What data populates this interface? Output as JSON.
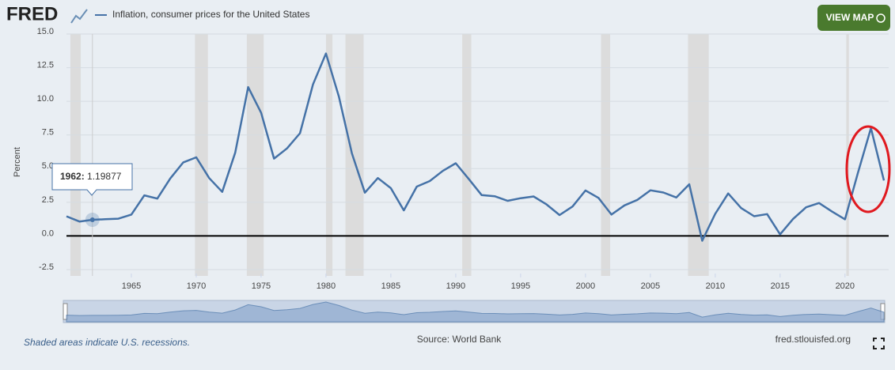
{
  "header": {
    "logo": "FRED",
    "button": "VIEW MAP"
  },
  "chart_data": {
    "type": "line",
    "y_label": "Percent",
    "x": [
      1960,
      1961,
      1962,
      1963,
      1964,
      1965,
      1966,
      1967,
      1968,
      1969,
      1970,
      1971,
      1972,
      1973,
      1974,
      1975,
      1976,
      1977,
      1978,
      1979,
      1980,
      1981,
      1982,
      1983,
      1984,
      1985,
      1986,
      1987,
      1988,
      1989,
      1990,
      1991,
      1992,
      1993,
      1994,
      1995,
      1996,
      1997,
      1998,
      1999,
      2000,
      2001,
      2002,
      2003,
      2004,
      2005,
      2006,
      2007,
      2008,
      2009,
      2010,
      2011,
      2012,
      2013,
      2014,
      2015,
      2016,
      2017,
      2018,
      2019,
      2020,
      2021,
      2022,
      2023
    ],
    "series": [
      {
        "name": "Inflation, consumer prices for the United States",
        "color": "#4572a7",
        "values": [
          1.458,
          1.071,
          1.19877,
          1.24,
          1.279,
          1.585,
          3.015,
          2.773,
          4.272,
          5.462,
          5.838,
          4.293,
          3.272,
          6.178,
          11.055,
          9.143,
          5.745,
          6.502,
          7.631,
          11.254,
          13.549,
          10.335,
          6.131,
          3.213,
          4.3,
          3.546,
          1.898,
          3.664,
          4.078,
          4.827,
          5.398,
          4.235,
          3.029,
          2.952,
          2.607,
          2.805,
          2.931,
          2.338,
          1.552,
          2.188,
          3.377,
          2.826,
          1.586,
          2.27,
          2.677,
          3.393,
          3.226,
          2.853,
          3.839,
          -0.356,
          1.64,
          3.157,
          2.069,
          1.465,
          1.622,
          0.119,
          1.262,
          2.13,
          2.443,
          1.812,
          1.234,
          4.698,
          8.003,
          4.116
        ]
      }
    ],
    "xlim": [
      1960,
      2023
    ],
    "ylim": [
      -2.5,
      15
    ],
    "xticks": [
      1965,
      1970,
      1975,
      1980,
      1985,
      1990,
      1995,
      2000,
      2005,
      2010,
      2015,
      2020
    ],
    "yticks": [
      {
        "value": 15,
        "label": "15.0"
      },
      {
        "value": 12.5,
        "label": "12.5"
      },
      {
        "value": 10,
        "label": "10.0"
      },
      {
        "value": 7.5,
        "label": "7.5"
      },
      {
        "value": 5,
        "label": "5.0"
      },
      {
        "value": 2.5,
        "label": "2.5"
      },
      {
        "value": 0,
        "label": "0.0"
      },
      {
        "value": -2.5,
        "label": "-2.5"
      }
    ],
    "grid": true,
    "recessions": [
      [
        1960.3,
        1961.1
      ],
      [
        1969.9,
        1970.9
      ],
      [
        1973.9,
        1975.2
      ],
      [
        1980.0,
        1980.5
      ],
      [
        1981.5,
        1982.9
      ],
      [
        1990.5,
        1991.2
      ],
      [
        2001.2,
        2001.9
      ],
      [
        2007.9,
        2009.5
      ],
      [
        2020.1,
        2020.3
      ]
    ],
    "recession_color": "#dcdcdc"
  },
  "footer": {
    "note": "Shaded areas indicate U.S. recessions.",
    "source": "Source: World Bank",
    "site": "fred.stlouisfed.org"
  }
}
